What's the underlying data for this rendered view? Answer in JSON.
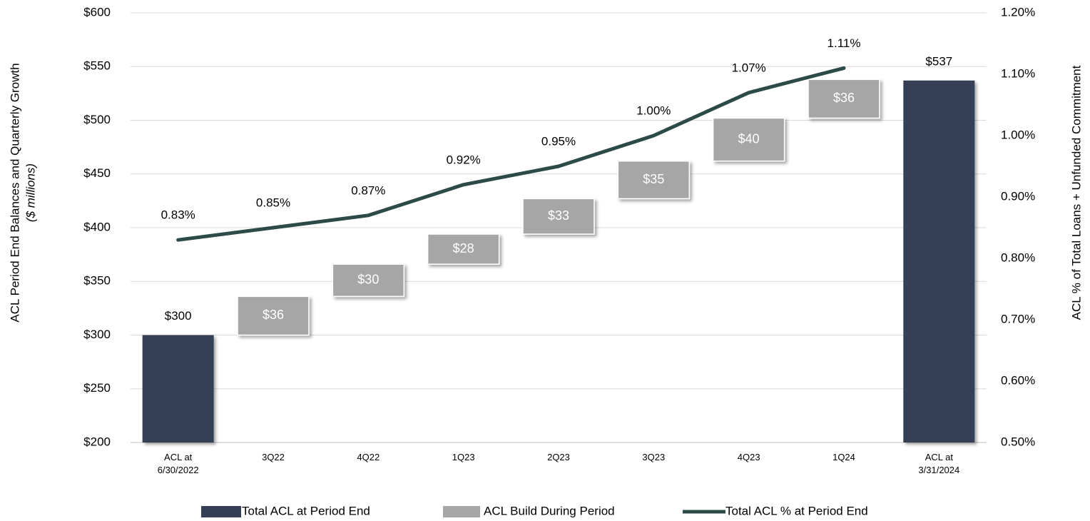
{
  "chart_data": {
    "type": "waterfall",
    "ylabel": "ACL Period End Balances and Quarterly Growth",
    "ylabel_note": "($ millions)",
    "y2label": "ACL % of Total Loans + Unfunded Commitment",
    "categories": [
      "ACL at\n6/30/2022",
      "3Q22",
      "4Q22",
      "1Q23",
      "2Q23",
      "3Q23",
      "4Q23",
      "1Q24",
      "ACL at\n3/31/2024"
    ],
    "series": [
      {
        "name": "Total ACL at Period End",
        "kind": "total",
        "color": "#343f56",
        "values": [
          300,
          null,
          null,
          null,
          null,
          null,
          null,
          null,
          537
        ],
        "value_labels": [
          "$300",
          null,
          null,
          null,
          null,
          null,
          null,
          null,
          "$537"
        ]
      },
      {
        "name": "ACL Build During Period",
        "kind": "build",
        "color": "#a6a6a6",
        "values": [
          null,
          36,
          30,
          28,
          33,
          35,
          40,
          36,
          null
        ],
        "value_labels": [
          null,
          "$36",
          "$30",
          "$28",
          "$33",
          "$35",
          "$40",
          "$36",
          null
        ]
      },
      {
        "name": "Total ACL % at Period End",
        "kind": "line",
        "axis": "y2",
        "color": "#2b4a48",
        "values": [
          0.83,
          0.85,
          0.87,
          0.92,
          0.95,
          1.0,
          1.07,
          1.11,
          null
        ],
        "value_labels": [
          "0.83%",
          "0.85%",
          "0.87%",
          "0.92%",
          "0.95%",
          "1.00%",
          "1.07%",
          "1.11%",
          null
        ]
      }
    ],
    "ylim": [
      200,
      600
    ],
    "yticks": [
      {
        "value": 200,
        "label": "$200"
      },
      {
        "value": 250,
        "label": "$250"
      },
      {
        "value": 300,
        "label": "$300"
      },
      {
        "value": 350,
        "label": "$350"
      },
      {
        "value": 400,
        "label": "$400"
      },
      {
        "value": 450,
        "label": "$450"
      },
      {
        "value": 500,
        "label": "$500"
      },
      {
        "value": 550,
        "label": "$550"
      },
      {
        "value": 600,
        "label": "$600"
      }
    ],
    "y2lim": [
      0.5,
      1.2
    ],
    "y2ticks": [
      {
        "value": 0.5,
        "label": "0.50%"
      },
      {
        "value": 0.6,
        "label": "0.60%"
      },
      {
        "value": 0.7,
        "label": "0.70%"
      },
      {
        "value": 0.8,
        "label": "0.80%"
      },
      {
        "value": 0.9,
        "label": "0.90%"
      },
      {
        "value": 1.0,
        "label": "1.00%"
      },
      {
        "value": 1.1,
        "label": "1.10%"
      },
      {
        "value": 1.2,
        "label": "1.20%"
      }
    ],
    "grid": true,
    "legend": "bottom"
  }
}
